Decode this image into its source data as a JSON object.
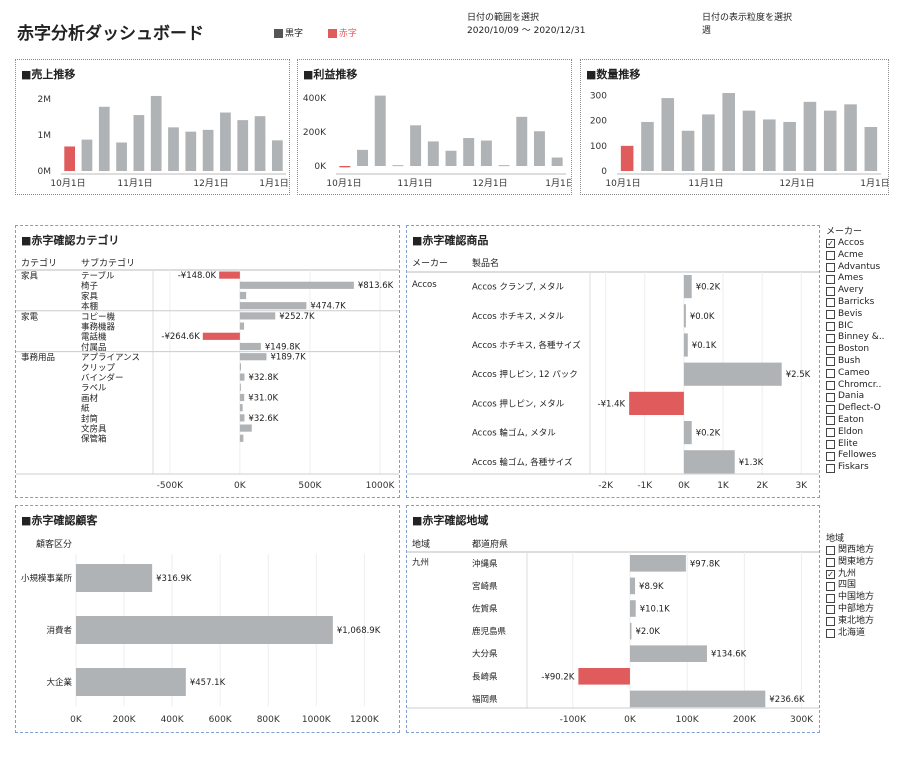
{
  "header": {
    "title": "赤字分析ダッシュボード",
    "legend": [
      {
        "label": "黒字",
        "color": "#555555"
      },
      {
        "label": "赤字",
        "color": "#e05c5c"
      }
    ],
    "date_range": {
      "label": "日付の範囲を選択",
      "value": "2020/10/09 ～ 2020/12/31"
    },
    "granularity": {
      "label": "日付の表示粒度を選択",
      "value": "週"
    }
  },
  "colors": {
    "black_bar": "#b0b3b5",
    "red_bar": "#e05c5c"
  },
  "chart_data": [
    {
      "type": "bar",
      "title": "■売上推移",
      "yticks": [
        "2M",
        "1M",
        "0M"
      ],
      "ylim": [
        0,
        2300000
      ],
      "xticks": [
        "10月1日",
        "11月1日",
        "12月1日",
        "1月1日"
      ],
      "values": [
        680000,
        870000,
        1780000,
        790000,
        1550000,
        2080000,
        1210000,
        1090000,
        1140000,
        1620000,
        1410000,
        1520000,
        850000
      ],
      "red_index": [
        0
      ]
    },
    {
      "type": "bar",
      "title": "■利益推移",
      "yticks": [
        "400K",
        "200K",
        "0K"
      ],
      "ylim": [
        0,
        460000
      ],
      "xticks": [
        "10月1日",
        "11月1日",
        "12月1日",
        "1月1日"
      ],
      "values": [
        -8000,
        95000,
        415000,
        5000,
        240000,
        145000,
        90000,
        165000,
        150000,
        5000,
        290000,
        205000,
        50000
      ],
      "red_index": [
        0
      ]
    },
    {
      "type": "bar",
      "title": "■数量推移",
      "yticks": [
        "300",
        "200",
        "100",
        "0"
      ],
      "ylim": [
        0,
        330
      ],
      "xticks": [
        "10月1日",
        "11月1日",
        "12月1日",
        "1月1日"
      ],
      "values": [
        100,
        195,
        290,
        160,
        225,
        310,
        240,
        205,
        195,
        275,
        240,
        265,
        175
      ],
      "red_index": [
        0
      ]
    },
    {
      "type": "bar",
      "title": "■赤字確認カテゴリ",
      "headers": [
        "カテゴリ",
        "サブカテゴリ"
      ],
      "groups": [
        {
          "name": "家具",
          "items": [
            {
              "sub": "テーブル",
              "value": -148.0,
              "label": "-¥148.0K"
            },
            {
              "sub": "椅子",
              "value": 813.6,
              "label": "¥813.6K"
            },
            {
              "sub": "家具",
              "value": 45,
              "label": ""
            },
            {
              "sub": "本棚",
              "value": 474.7,
              "label": "¥474.7K"
            }
          ]
        },
        {
          "name": "家電",
          "items": [
            {
              "sub": "コピー機",
              "value": 252.7,
              "label": "¥252.7K"
            },
            {
              "sub": "事務機器",
              "value": 30,
              "label": ""
            },
            {
              "sub": "電話機",
              "value": -264.6,
              "label": "-¥264.6K"
            },
            {
              "sub": "付属品",
              "value": 149.8,
              "label": "¥149.8K"
            }
          ]
        },
        {
          "name": "事務用品",
          "items": [
            {
              "sub": "アプライアンス",
              "value": 189.7,
              "label": "¥189.7K"
            },
            {
              "sub": "クリップ",
              "value": 8,
              "label": ""
            },
            {
              "sub": "バインダー",
              "value": 32.8,
              "label": "¥32.8K"
            },
            {
              "sub": "ラベル",
              "value": 5,
              "label": ""
            },
            {
              "sub": "画材",
              "value": 31.0,
              "label": "¥31.0K"
            },
            {
              "sub": "紙",
              "value": 20,
              "label": ""
            },
            {
              "sub": "封筒",
              "value": 32.6,
              "label": "¥32.6K"
            },
            {
              "sub": "文房具",
              "value": 85,
              "label": ""
            },
            {
              "sub": "保管箱",
              "value": 25,
              "label": ""
            }
          ]
        }
      ],
      "xticks": [
        "-500K",
        "0K",
        "500K",
        "1000K"
      ],
      "xtick_values": [
        -500,
        0,
        500,
        1000
      ],
      "xlim": [
        -620,
        1100
      ]
    },
    {
      "type": "bar",
      "title": "■赤字確認商品",
      "headers": [
        "メーカー",
        "製品名"
      ],
      "maker": "Accos",
      "items": [
        {
          "name": "Accos クランプ, メタル",
          "value": 0.2,
          "label": "¥0.2K"
        },
        {
          "name": "Accos ホチキス, メタル",
          "value": 0.03,
          "label": "¥0.0K"
        },
        {
          "name": "Accos ホチキス, 各種サイズ",
          "value": 0.1,
          "label": "¥0.1K"
        },
        {
          "name": "Accos 押しピン, 12 パック",
          "value": 2.5,
          "label": "¥2.5K"
        },
        {
          "name": "Accos 押しピン, メタル",
          "value": -1.4,
          "label": "-¥1.4K"
        },
        {
          "name": "Accos 輪ゴム, メタル",
          "value": 0.2,
          "label": "¥0.2K"
        },
        {
          "name": "Accos 輪ゴム, 各種サイズ",
          "value": 1.3,
          "label": "¥1.3K"
        }
      ],
      "xticks": [
        "-2K",
        "-1K",
        "0K",
        "1K",
        "2K",
        "3K"
      ],
      "xtick_values": [
        -2,
        -1,
        0,
        1,
        2,
        3
      ],
      "xlim": [
        -2.4,
        3.3
      ]
    },
    {
      "type": "bar",
      "title": "■赤字確認顧客",
      "headers": [
        "顧客区分"
      ],
      "items": [
        {
          "name": "小規模事業所",
          "value": 316.9,
          "label": "¥316.9K"
        },
        {
          "name": "消費者",
          "value": 1068.9,
          "label": "¥1,068.9K"
        },
        {
          "name": "大企業",
          "value": 457.1,
          "label": "¥457.1K"
        }
      ],
      "xticks": [
        "0K",
        "200K",
        "400K",
        "600K",
        "800K",
        "1000K",
        "1200K"
      ],
      "xtick_values": [
        0,
        200,
        400,
        600,
        800,
        1000,
        1200
      ],
      "xlim": [
        0,
        1290
      ]
    },
    {
      "type": "bar",
      "title": "■赤字確認地域",
      "headers": [
        "地域",
        "都道府県"
      ],
      "region": "九州",
      "items": [
        {
          "name": "沖縄県",
          "value": 97.8,
          "label": "¥97.8K"
        },
        {
          "name": "宮崎県",
          "value": 8.9,
          "label": "¥8.9K"
        },
        {
          "name": "佐賀県",
          "value": 10.1,
          "label": "¥10.1K"
        },
        {
          "name": "鹿児島県",
          "value": 2.0,
          "label": "¥2.0K"
        },
        {
          "name": "大分県",
          "value": 134.6,
          "label": "¥134.6K"
        },
        {
          "name": "長崎県",
          "value": -90.2,
          "label": "-¥90.2K"
        },
        {
          "name": "福岡県",
          "value": 236.6,
          "label": "¥236.6K"
        }
      ],
      "xticks": [
        "-100K",
        "0K",
        "100K",
        "200K",
        "300K"
      ],
      "xtick_values": [
        -100,
        0,
        100,
        200,
        300
      ],
      "xlim": [
        -180,
        320
      ]
    }
  ],
  "maker_filter": {
    "title": "メーカー",
    "items": [
      {
        "label": "Accos",
        "checked": true
      },
      {
        "label": "Acme",
        "checked": false
      },
      {
        "label": "Advantus",
        "checked": false
      },
      {
        "label": "Ames",
        "checked": false
      },
      {
        "label": "Avery",
        "checked": false
      },
      {
        "label": "Barricks",
        "checked": false
      },
      {
        "label": "Bevis",
        "checked": false
      },
      {
        "label": "BIC",
        "checked": false
      },
      {
        "label": "Binney &..",
        "checked": false
      },
      {
        "label": "Boston",
        "checked": false
      },
      {
        "label": "Bush",
        "checked": false
      },
      {
        "label": "Cameo",
        "checked": false
      },
      {
        "label": "Chromcr..",
        "checked": false
      },
      {
        "label": "Dania",
        "checked": false
      },
      {
        "label": "Deflect-O",
        "checked": false
      },
      {
        "label": "Eaton",
        "checked": false
      },
      {
        "label": "Eldon",
        "checked": false
      },
      {
        "label": "Elite",
        "checked": false
      },
      {
        "label": "Fellowes",
        "checked": false
      },
      {
        "label": "Fiskars",
        "checked": false
      }
    ]
  },
  "region_filter": {
    "title": "地域",
    "items": [
      {
        "label": "関西地方",
        "checked": false
      },
      {
        "label": "関東地方",
        "checked": false
      },
      {
        "label": "九州",
        "checked": true
      },
      {
        "label": "四国",
        "checked": false
      },
      {
        "label": "中国地方",
        "checked": false
      },
      {
        "label": "中部地方",
        "checked": false
      },
      {
        "label": "東北地方",
        "checked": false
      },
      {
        "label": "北海道",
        "checked": false
      }
    ]
  }
}
